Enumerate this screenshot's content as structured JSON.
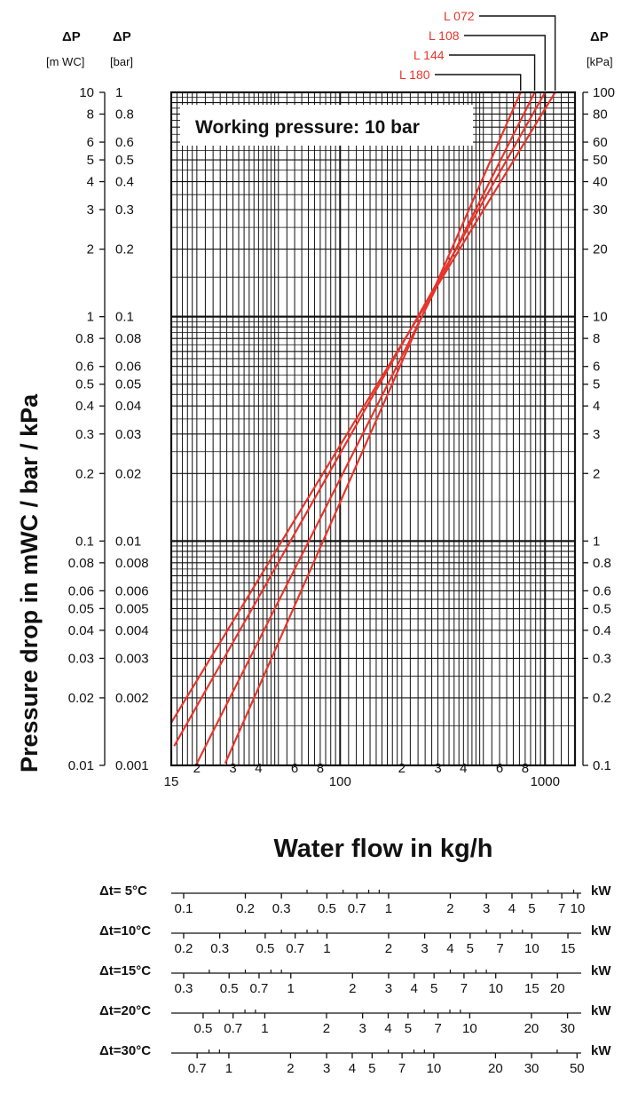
{
  "chart_data": {
    "type": "line",
    "title": "Working pressure: 10 bar",
    "xlabel": "Water flow in kg/h",
    "ylabel": "Pressure drop in mWC / bar / kPa",
    "x_scale": "log",
    "y_scale": "log",
    "xlim": [
      15,
      1400
    ],
    "ylim": [
      0.01,
      10
    ],
    "grid": true,
    "x_tick_labels": [
      "15",
      "2",
      "3",
      "4",
      "6",
      "8",
      "100",
      "2",
      "3",
      "4",
      "6",
      "8",
      "1000"
    ],
    "y_axes": {
      "left_outer": {
        "header": [
          "ΔP",
          "[m WC]"
        ],
        "ticks": [
          "10",
          "8",
          "6",
          "5",
          "4",
          "3",
          "2",
          "1",
          "0.8",
          "0.6",
          "0.5",
          "0.4",
          "0.3",
          "0.2",
          "0.1",
          "0.08",
          "0.06",
          "0.05",
          "0.04",
          "0.03",
          "0.02",
          "0.01"
        ]
      },
      "left_inner": {
        "header": [
          "ΔP",
          "[bar]"
        ],
        "ticks": [
          "1",
          "0.8",
          "0.6",
          "0.5",
          "0.4",
          "0.3",
          "0.2",
          "0.1",
          "0.08",
          "0.06",
          "0.05",
          "0.04",
          "0.03",
          "0.02",
          "0.01",
          "0.008",
          "0.006",
          "0.005",
          "0.004",
          "0.003",
          "0.002",
          "0.001"
        ]
      },
      "right": {
        "header": [
          "ΔP",
          "[kPa]"
        ],
        "ticks": [
          "100",
          "80",
          "60",
          "50",
          "40",
          "30",
          "20",
          "10",
          "8",
          "6",
          "5",
          "4",
          "3",
          "2",
          "1",
          "0.8",
          "0.6",
          "0.5",
          "0.4",
          "0.3",
          "0.2",
          "0.1"
        ]
      }
    },
    "series": [
      {
        "name": "L 072",
        "color": "#e8352b",
        "points": [
          [
            15,
            0.0155
          ],
          [
            1120,
            10
          ]
        ]
      },
      {
        "name": "L 108",
        "color": "#e8352b",
        "points": [
          [
            15.5,
            0.0122
          ],
          [
            1000,
            10
          ]
        ]
      },
      {
        "name": "L 144",
        "color": "#e8352b",
        "points": [
          [
            20,
            0.0102
          ],
          [
            890,
            10
          ]
        ]
      },
      {
        "name": "L 180",
        "color": "#e8352b",
        "points": [
          [
            27.5,
            0.0102
          ],
          [
            760,
            10
          ]
        ]
      }
    ],
    "power_scales": [
      {
        "label": "Δt= 5°C",
        "unit": "kW",
        "kw_per_kgh": 0.0058,
        "ticks": [
          "0.1",
          "0.2",
          "0.3",
          "0.5",
          "0.7",
          "1",
          "2",
          "3",
          "4",
          "5",
          "7",
          "10"
        ]
      },
      {
        "label": "Δt=10°C",
        "unit": "kW",
        "kw_per_kgh": 0.0116,
        "ticks": [
          "0.2",
          "0.3",
          "0.5",
          "0.7",
          "1",
          "2",
          "3",
          "4",
          "5",
          "7",
          "10",
          "15"
        ]
      },
      {
        "label": "Δt=15°C",
        "unit": "kW",
        "kw_per_kgh": 0.0174,
        "ticks": [
          "0.3",
          "0.5",
          "0.7",
          "1",
          "2",
          "3",
          "4",
          "5",
          "7",
          "10",
          "15",
          "20"
        ]
      },
      {
        "label": "Δt=20°C",
        "unit": "kW",
        "kw_per_kgh": 0.0233,
        "ticks": [
          "0.5",
          "0.7",
          "1",
          "2",
          "3",
          "4",
          "5",
          "7",
          "10",
          "20",
          "30"
        ]
      },
      {
        "label": "Δt=30°C",
        "unit": "kW",
        "kw_per_kgh": 0.0349,
        "ticks": [
          "0.7",
          "1",
          "2",
          "3",
          "4",
          "5",
          "7",
          "10",
          "20",
          "30",
          "50"
        ]
      }
    ]
  }
}
